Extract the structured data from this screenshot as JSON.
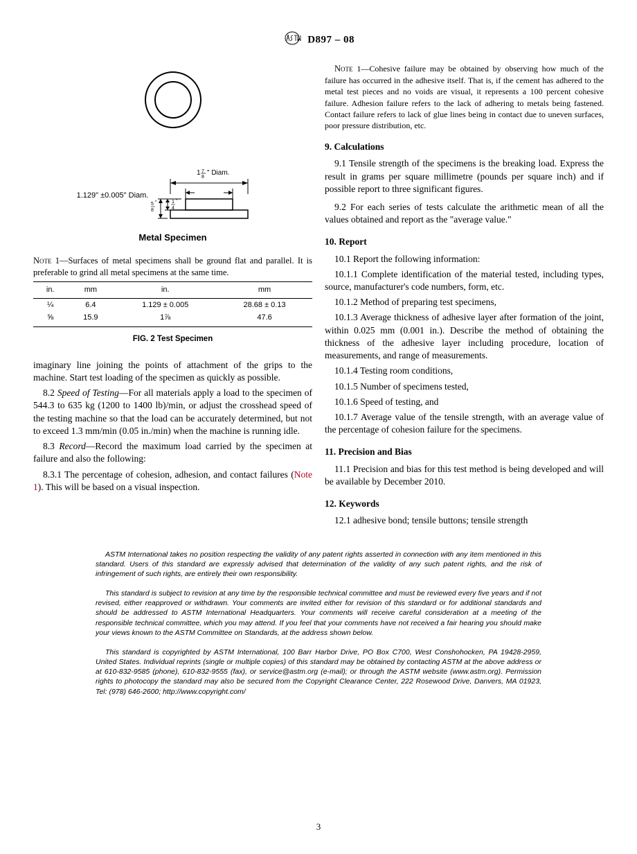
{
  "header": {
    "std": "D897 – 08"
  },
  "diagram": {
    "left_label": "1.129\" ±0.005\" Diam.",
    "top_label": "1⅞\" Diam.",
    "side_frac_top": "⅝",
    "side_frac_bot": "¼",
    "metal_title": "Metal Specimen"
  },
  "note_fig": "—Surfaces of metal specimens shall be ground flat and parallel. It is preferable to grind all metal specimens at the same time.",
  "table": {
    "headers": [
      "in.",
      "mm",
      "in.",
      "mm"
    ],
    "rows": [
      [
        "¼",
        "6.4",
        "1.129 ± 0.005",
        "28.68 ± 0.13"
      ],
      [
        "⅝",
        "15.9",
        "1⅞",
        "47.6"
      ]
    ]
  },
  "fig_caption": "FIG. 2 Test Specimen",
  "left": {
    "p1": "imaginary line joining the points of attachment of the grips to the machine. Start test loading of the specimen as quickly as possible.",
    "p2_num": "8.2 ",
    "p2_title": "Speed of Testing",
    "p2_body": "—For all materials apply a load to the specimen of 544.3 to 635 kg (1200 to 1400 lb)/min, or adjust the crosshead speed of the testing machine so that the load can be accurately determined, but not to exceed 1.3 mm/min (0.05 in./min) when the machine is running idle.",
    "p3_num": "8.3 ",
    "p3_title": "Record",
    "p3_body": "—Record the maximum load carried by the specimen at failure and also the following:",
    "p4_a": "8.3.1 The percentage of cohesion, adhesion, and contact failures (",
    "p4_ref": "Note 1",
    "p4_b": "). This will be based on a visual inspection."
  },
  "right": {
    "note1": "—Cohesive failure may be obtained by observing how much of the failure has occurred in the adhesive itself. That is, if the cement has adhered to the metal test pieces and no voids are visual, it represents a 100 percent cohesive failure. Adhesion failure refers to the lack of adhering to metals being fastened. Contact failure refers to lack of glue lines being in contact due to uneven surfaces, poor pressure distribution, etc.",
    "s9": "9.  Calculations",
    "s9_1": "9.1 Tensile strength of the specimens is the breaking load. Express the result in grams per square millimetre (pounds per square inch) and if possible report to three significant figures.",
    "s9_2": "9.2 For each series of tests calculate the arithmetic mean of all the values obtained and report as the \"average value.\"",
    "s10": "10.  Report",
    "s10_1": "10.1 Report the following information:",
    "s10_1_1": "10.1.1 Complete identification of the material tested, including types, source, manufacturer's code numbers, form, etc.",
    "s10_1_2": "10.1.2 Method of preparing test specimens,",
    "s10_1_3": "10.1.3 Average thickness of adhesive layer after formation of the joint, within 0.025 mm (0.001 in.). Describe the method of obtaining the thickness of the adhesive layer including procedure, location of measurements, and range of measurements.",
    "s10_1_4": "10.1.4 Testing room conditions,",
    "s10_1_5": "10.1.5 Number of specimens tested,",
    "s10_1_6": "10.1.6 Speed of testing, and",
    "s10_1_7": "10.1.7 Average value of the tensile strength, with an average value of the percentage of cohesion failure for the specimens.",
    "s11": "11.  Precision and Bias",
    "s11_1": "11.1 Precision and bias for this test method is being developed and will be available by December 2010.",
    "s12": "12.  Keywords",
    "s12_1": "12.1 adhesive bond; tensile buttons; tensile strength"
  },
  "footer": {
    "p1": "ASTM International takes no position respecting the validity of any patent rights asserted in connection with any item mentioned in this standard. Users of this standard are expressly advised that determination of the validity of any such patent rights, and the risk of infringement of such rights, are entirely their own responsibility.",
    "p2": "This standard is subject to revision at any time by the responsible technical committee and must be reviewed every five years and if not revised, either reapproved or withdrawn. Your comments are invited either for revision of this standard or for additional standards and should be addressed to ASTM International Headquarters. Your comments will receive careful consideration at a meeting of the responsible technical committee, which you may attend. If you feel that your comments have not received a fair hearing you should make your views known to the ASTM Committee on Standards, at the address shown below.",
    "p3": "This standard is copyrighted by ASTM International, 100 Barr Harbor Drive, PO Box C700, West Conshohocken, PA 19428-2959, United States. Individual reprints (single or multiple copies) of this standard may be obtained by contacting ASTM at the above address or at 610-832-9585 (phone), 610-832-9555 (fax), or service@astm.org (e-mail); or through the ASTM website (www.astm.org). Permission rights to photocopy the standard may also be secured from the Copyright Clearance Center, 222 Rosewood Drive, Danvers, MA 01923, Tel: (978) 646-2600; http://www.copyright.com/"
  },
  "page": "3"
}
